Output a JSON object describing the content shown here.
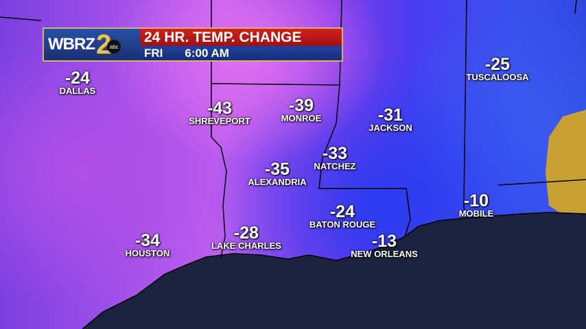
{
  "banner": {
    "logo_text": "WBRZ",
    "logo_number": "2",
    "network": "abc",
    "title": "24 HR. TEMP. CHANGE",
    "day": "FRI",
    "time": "6:00 AM"
  },
  "colors": {
    "gulf": "#1c2340",
    "title_bar": "#c01818",
    "time_bar": "#1e3a90",
    "positive_change": "#e0b020"
  },
  "cities": [
    {
      "name": "DALLAS",
      "value": "-24"
    },
    {
      "name": "SHREVEPORT",
      "value": "-43"
    },
    {
      "name": "MONROE",
      "value": "-39"
    },
    {
      "name": "JACKSON",
      "value": "-31"
    },
    {
      "name": "TUSCALOOSA",
      "value": "-25"
    },
    {
      "name": "NATCHEZ",
      "value": "-33"
    },
    {
      "name": "ALEXANDRIA",
      "value": "-35"
    },
    {
      "name": "BATON ROUGE",
      "value": "-24"
    },
    {
      "name": "MOBILE",
      "value": "-10"
    },
    {
      "name": "HOUSTON",
      "value": "-34"
    },
    {
      "name": "LAKE CHARLES",
      "value": "-28"
    },
    {
      "name": "NEW ORLEANS",
      "value": "-13"
    }
  ]
}
